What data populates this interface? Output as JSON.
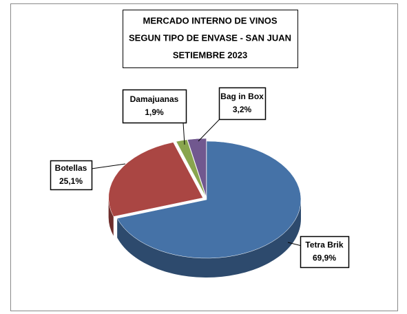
{
  "chart_data": {
    "type": "pie3d",
    "title": [
      "MERCADO INTERNO DE VINOS",
      "SEGUN TIPO DE ENVASE - SAN JUAN",
      "SETIEMBRE 2023"
    ],
    "categories": [
      "Tetra Brik",
      "Botellas",
      "Damajuanas",
      "Bag in Box"
    ],
    "values": [
      69.9,
      25.1,
      1.9,
      3.2
    ],
    "value_labels": [
      "69,9%",
      "25,1%",
      "1,9%",
      "3,2%"
    ],
    "colors": [
      "#4572a7",
      "#aa4643",
      "#89a54e",
      "#71588f"
    ]
  }
}
